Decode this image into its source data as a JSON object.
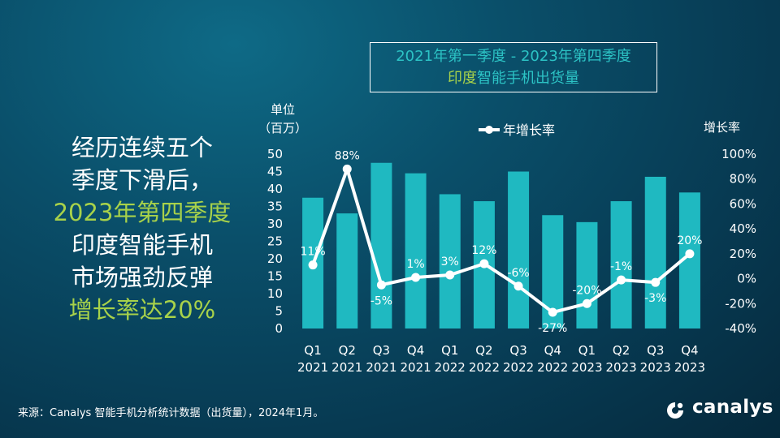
{
  "headline": {
    "line1": "经历连续五个",
    "line2": "季度下滑后，",
    "line3": "2023年第四季度",
    "line4": "印度智能手机",
    "line5": "市场强劲反弹",
    "line6": "增长率达20%"
  },
  "title": {
    "line1": "2021年第一季度  - 2023年第四季度",
    "line2_hl": "印度",
    "line2_rest": "智能手机出货量"
  },
  "left_axis_label_1": "单位",
  "left_axis_label_2": "（百万）",
  "right_axis_label": "增长率",
  "legend_label": "年增长率",
  "footer": "来源：Canalys 智能手机分析统计数据（出货量），2024年1月。",
  "logo_text": "canalys",
  "colors": {
    "bar": "#1fb9c1",
    "line": "#ffffff",
    "highlight": "#a8d24a",
    "title": "#2cc3c5"
  },
  "chart_data": {
    "type": "bar+line",
    "categories": [
      "Q1 2021",
      "Q2 2021",
      "Q3 2021",
      "Q4 2021",
      "Q1 2022",
      "Q2 2022",
      "Q3 2022",
      "Q4 2022",
      "Q1 2023",
      "Q2 2023",
      "Q3 2023",
      "Q4 2023"
    ],
    "category_lines": [
      [
        "Q1",
        "2021"
      ],
      [
        "Q2",
        "2021"
      ],
      [
        "Q3",
        "2021"
      ],
      [
        "Q4",
        "2021"
      ],
      [
        "Q1",
        "2022"
      ],
      [
        "Q2",
        "2022"
      ],
      [
        "Q3",
        "2022"
      ],
      [
        "Q4",
        "2022"
      ],
      [
        "Q1",
        "2023"
      ],
      [
        "Q2",
        "2023"
      ],
      [
        "Q3",
        "2023"
      ],
      [
        "Q4",
        "2023"
      ]
    ],
    "series": [
      {
        "name": "出货量",
        "type": "bar",
        "axis": "left",
        "values": [
          37.5,
          33,
          47.5,
          44.5,
          38.5,
          36.5,
          45,
          32.5,
          30.5,
          36.5,
          43.5,
          39
        ]
      },
      {
        "name": "年增长率",
        "type": "line",
        "axis": "right",
        "values": [
          11,
          88,
          -5,
          1,
          3,
          12,
          -6,
          -27,
          -20,
          -1,
          -3,
          20
        ],
        "labels": [
          "11%",
          "88%",
          "-5%",
          "1%",
          "3%",
          "12%",
          "-6%",
          "-27%",
          "-20%",
          "-1%",
          "-3%",
          "20%"
        ]
      }
    ],
    "left_axis": {
      "min": 0,
      "max": 50,
      "ticks": [
        0,
        5,
        10,
        15,
        20,
        25,
        30,
        35,
        40,
        45,
        50
      ]
    },
    "right_axis": {
      "min": -40,
      "max": 100,
      "ticks": [
        -40,
        -20,
        0,
        20,
        40,
        60,
        80,
        100
      ],
      "tick_labels": [
        "-40%",
        "-20%",
        "0%",
        "20%",
        "40%",
        "60%",
        "80%",
        "100%"
      ]
    },
    "legend_position": "top"
  }
}
